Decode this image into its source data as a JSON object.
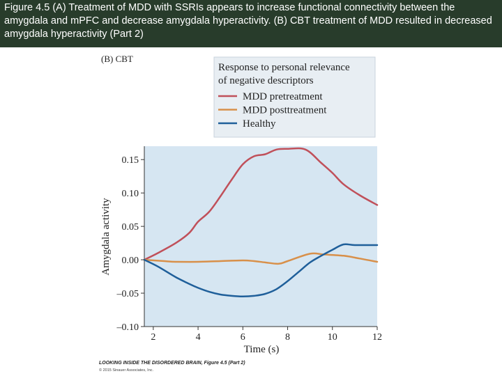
{
  "header": {
    "caption": "Figure 4.5 (A) Treatment of MDD with SSRIs appears to increase functional connectivity between the amygdala and mPFC and decrease amygdala hyperactivity. (B) CBT treatment of MDD resulted in decreased amygdala hyperactivity (Part 2)"
  },
  "footer": {
    "credit": "LOOKING INSIDE THE DISORDERED BRAIN, Figure 4.5 (Part 2)",
    "copyright": "© 2015 Sinauer Associates, Inc."
  },
  "chart_data": {
    "type": "line",
    "panel_label": "(B) CBT",
    "legend_title": "Response to personal relevance of negative descriptors",
    "legend_position": "top, above plot",
    "xlabel": "Time (s)",
    "ylabel": "Amygdala activity",
    "xlim": [
      1.6,
      12
    ],
    "ylim": [
      -0.1,
      0.17
    ],
    "xticks": [
      2,
      4,
      6,
      8,
      10,
      12
    ],
    "xtick_labels": [
      "2",
      "4",
      "6",
      "8",
      "10",
      "12"
    ],
    "yticks": [
      -0.1,
      -0.05,
      0,
      0.05,
      0.1,
      0.15
    ],
    "ytick_labels": [
      "–0.10",
      "–0.05",
      "0.00",
      "0.05",
      "0.10",
      "0.15"
    ],
    "grid": false,
    "plot_background": "#d6e6f2",
    "series": [
      {
        "name": "MDD pretreatment",
        "color": "#c0505a",
        "points": [
          [
            1.6,
            0.0
          ],
          [
            2.2,
            0.01
          ],
          [
            3.0,
            0.025
          ],
          [
            3.6,
            0.04
          ],
          [
            4.0,
            0.057
          ],
          [
            4.5,
            0.072
          ],
          [
            5.0,
            0.095
          ],
          [
            5.5,
            0.12
          ],
          [
            6.0,
            0.143
          ],
          [
            6.5,
            0.155
          ],
          [
            7.0,
            0.158
          ],
          [
            7.5,
            0.165
          ],
          [
            8.0,
            0.166
          ],
          [
            8.8,
            0.165
          ],
          [
            9.5,
            0.145
          ],
          [
            10.0,
            0.13
          ],
          [
            10.5,
            0.113
          ],
          [
            11.2,
            0.097
          ],
          [
            12.0,
            0.082
          ]
        ]
      },
      {
        "name": "MDD posttreatment",
        "color": "#d8904a",
        "points": [
          [
            1.6,
            0.0
          ],
          [
            2.5,
            -0.002
          ],
          [
            3.0,
            -0.003
          ],
          [
            4.0,
            -0.003
          ],
          [
            5.0,
            -0.002
          ],
          [
            6.0,
            -0.001
          ],
          [
            6.5,
            -0.002
          ],
          [
            7.0,
            -0.004
          ],
          [
            7.6,
            -0.006
          ],
          [
            8.0,
            -0.002
          ],
          [
            9.0,
            0.009
          ],
          [
            9.6,
            0.008
          ],
          [
            10.5,
            0.006
          ],
          [
            11.2,
            0.002
          ],
          [
            12.0,
            -0.003
          ]
        ]
      },
      {
        "name": "Healthy",
        "color": "#1f5f9a",
        "points": [
          [
            1.6,
            0.0
          ],
          [
            2.2,
            -0.01
          ],
          [
            3.0,
            -0.026
          ],
          [
            3.6,
            -0.036
          ],
          [
            4.0,
            -0.042
          ],
          [
            4.5,
            -0.048
          ],
          [
            5.0,
            -0.052
          ],
          [
            5.5,
            -0.054
          ],
          [
            6.0,
            -0.055
          ],
          [
            6.5,
            -0.054
          ],
          [
            7.0,
            -0.051
          ],
          [
            7.5,
            -0.044
          ],
          [
            8.0,
            -0.032
          ],
          [
            8.5,
            -0.018
          ],
          [
            9.0,
            -0.004
          ],
          [
            9.5,
            0.006
          ],
          [
            10.0,
            0.015
          ],
          [
            10.5,
            0.023
          ],
          [
            11.0,
            0.022
          ],
          [
            12.0,
            0.022
          ]
        ]
      }
    ]
  }
}
